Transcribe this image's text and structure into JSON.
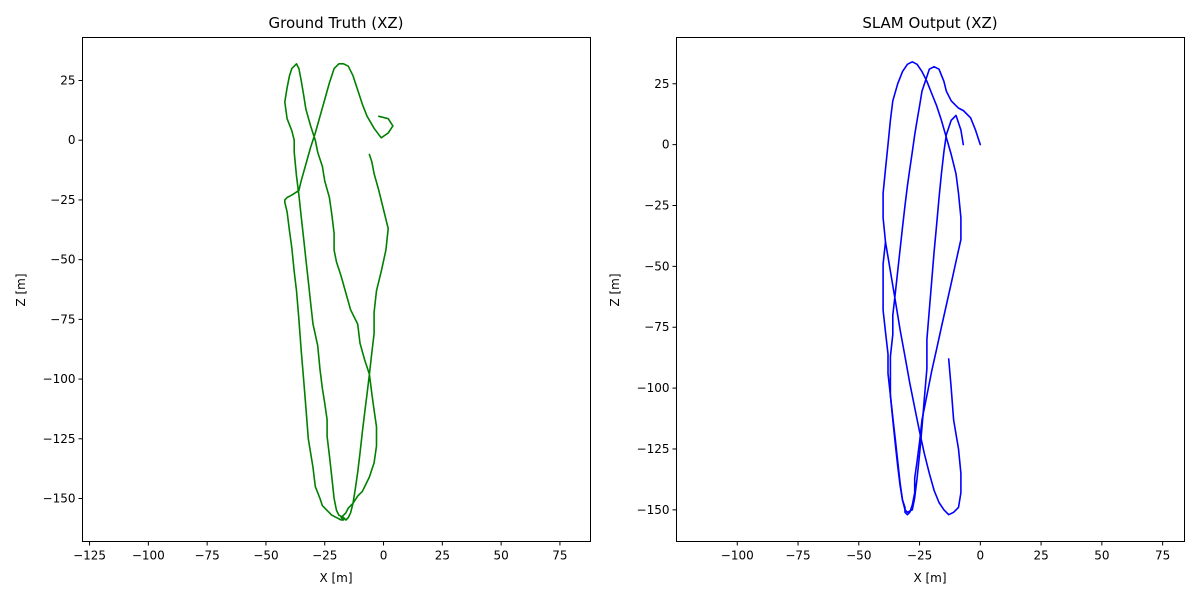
{
  "chart_data": [
    {
      "type": "line",
      "title": "Ground Truth (XZ)",
      "xlabel": "X [m]",
      "ylabel": "Z [m]",
      "xlim": [
        -128,
        88
      ],
      "ylim": [
        -168,
        43
      ],
      "xticks": [
        -125,
        -100,
        -75,
        -50,
        -25,
        0,
        25,
        50,
        75
      ],
      "yticks": [
        25,
        0,
        -25,
        -50,
        -75,
        -100,
        -125,
        -150
      ],
      "xtick_labels": [
        "−125",
        "−100",
        "−75",
        "−50",
        "−25",
        "0",
        "25",
        "50",
        "75"
      ],
      "ytick_labels": [
        "25",
        "0",
        "−25",
        "−50",
        "−75",
        "−100",
        "−125",
        "−150"
      ],
      "grid": false,
      "color": "#008000",
      "series": [
        {
          "x": [
            -2,
            2,
            4,
            2,
            -1,
            -4,
            -7,
            -9,
            -11,
            -13,
            -15,
            -17,
            -19,
            -21,
            -23,
            -25,
            -27,
            -29,
            -31,
            -33,
            -35,
            -36,
            -39,
            -41,
            -42,
            -42,
            -41,
            -40,
            -39,
            -38,
            -37,
            -36,
            -35,
            -34,
            -33,
            -32,
            -30,
            -29,
            -27,
            -26,
            -24,
            -22,
            -20,
            -18,
            -17,
            -18,
            -16,
            -15,
            -13,
            -11,
            -9,
            -8,
            -6,
            -4,
            -3,
            -3,
            -4,
            -5,
            -6,
            -8,
            -10,
            -11,
            -14,
            -16,
            -18,
            -20,
            -21,
            -21,
            -22,
            -23,
            -25,
            -26,
            -28,
            -29,
            -31,
            -33,
            -34,
            -35,
            -36,
            -37,
            -38,
            -39,
            -40,
            -41,
            -42,
            -41,
            -39,
            -38,
            -38,
            -37,
            -36,
            -35,
            -34,
            -33,
            -32,
            -31,
            -30,
            -28,
            -27,
            -26,
            -25,
            -24,
            -24,
            -23,
            -22,
            -21,
            -20,
            -19,
            -17,
            -16,
            -15,
            -14,
            -13,
            -12,
            -11,
            -10,
            -9,
            -8,
            -7,
            -6,
            -5,
            -4,
            -4,
            -3,
            -1,
            1,
            2,
            0,
            -2,
            -4,
            -5,
            -6
          ],
          "y": [
            10,
            9,
            6,
            3,
            1,
            5,
            10,
            15,
            21,
            27,
            31,
            32,
            32,
            30,
            24,
            17,
            10,
            3,
            -3,
            -10,
            -17,
            -21,
            -23,
            -24,
            -25,
            -26,
            -30,
            -38,
            -45,
            -55,
            -63,
            -75,
            -88,
            -100,
            -112,
            -125,
            -137,
            -145,
            -150,
            -153,
            -155,
            -157,
            -158,
            -159,
            -159,
            -158,
            -156,
            -154,
            -152,
            -149,
            -147,
            -145,
            -141,
            -135,
            -128,
            -120,
            -113,
            -106,
            -98,
            -92,
            -85,
            -77,
            -71,
            -64,
            -57,
            -51,
            -46,
            -39,
            -31,
            -24,
            -17,
            -11,
            -5,
            0,
            6,
            13,
            19,
            25,
            30,
            32,
            31,
            30,
            27,
            22,
            16,
            9,
            4,
            0,
            -5,
            -15,
            -23,
            -32,
            -41,
            -50,
            -59,
            -68,
            -77,
            -86,
            -96,
            -104,
            -110,
            -117,
            -124,
            -132,
            -141,
            -150,
            -155,
            -157,
            -158,
            -159,
            -158,
            -156,
            -152,
            -146,
            -139,
            -131,
            -122,
            -114,
            -106,
            -98,
            -89,
            -81,
            -72,
            -63,
            -55,
            -46,
            -37,
            -29,
            -21,
            -14,
            -9,
            -6
          ]
        }
      ]
    },
    {
      "type": "line",
      "title": "SLAM Output (XZ)",
      "xlabel": "X [m]",
      "ylabel": "Z [m]",
      "xlim": [
        -125,
        84
      ],
      "ylim": [
        -163,
        44
      ],
      "xticks": [
        -100,
        -75,
        -50,
        -25,
        0,
        25,
        50,
        75
      ],
      "yticks": [
        25,
        0,
        -25,
        -50,
        -75,
        -100,
        -125,
        -150
      ],
      "xtick_labels": [
        "−100",
        "−75",
        "−50",
        "−25",
        "0",
        "25",
        "50",
        "75"
      ],
      "ytick_labels": [
        "25",
        "0",
        "−25",
        "−50",
        "−75",
        "−100",
        "−125",
        "−150"
      ],
      "grid": false,
      "color": "#0000ff",
      "series": [
        {
          "x": [
            0,
            -2,
            -4,
            -7,
            -9,
            -10,
            -12,
            -14,
            -15,
            -17,
            -19,
            -21,
            -22,
            -24,
            -25,
            -26,
            -27,
            -28,
            -29,
            -30,
            -31,
            -32,
            -33,
            -34,
            -35,
            -36,
            -36,
            -37,
            -37,
            -37,
            -36,
            -35,
            -34,
            -33,
            -32,
            -31,
            -31,
            -30,
            -29,
            -28,
            -27,
            -27,
            -26,
            -25,
            -24,
            -22,
            -20,
            -18,
            -16,
            -14,
            -12,
            -10,
            -8,
            -8,
            -9,
            -10,
            -12,
            -14,
            -16,
            -18,
            -20,
            -22,
            -24,
            -26,
            -28,
            -30,
            -32,
            -34,
            -36,
            -37,
            -38,
            -39,
            -40,
            -40,
            -39,
            -37,
            -35,
            -33,
            -31,
            -29,
            -27,
            -25,
            -23,
            -21,
            -19,
            -17,
            -15,
            -13,
            -11,
            -9,
            -8,
            -8,
            -9,
            -11,
            -12,
            -13
          ],
          "y": [
            0,
            6,
            11,
            14,
            15,
            16,
            18,
            22,
            26,
            31,
            32,
            31,
            28,
            22,
            16,
            10,
            4,
            -3,
            -10,
            -17,
            -25,
            -34,
            -43,
            -52,
            -61,
            -70,
            -78,
            -87,
            -95,
            -103,
            -112,
            -121,
            -130,
            -139,
            -146,
            -149,
            -151,
            -152,
            -151,
            -148,
            -143,
            -137,
            -130,
            -122,
            -113,
            -103,
            -93,
            -84,
            -75,
            -66,
            -57,
            -48,
            -39,
            -30,
            -20,
            -12,
            -4,
            3,
            10,
            16,
            21,
            26,
            30,
            33,
            34,
            33,
            30,
            25,
            18,
            10,
            0,
            -10,
            -20,
            -30,
            -40,
            -52,
            -64,
            -76,
            -87,
            -98,
            -108,
            -118,
            -127,
            -135,
            -142,
            -147,
            -150,
            -152,
            -151,
            -149,
            -143,
            -135,
            -125,
            -113,
            -100,
            -88
          ]
        },
        {
          "x": [
            -7,
            -8,
            -10,
            -12,
            -14,
            -15,
            -16,
            -17,
            -18,
            -19,
            -20,
            -21,
            -22,
            -22,
            -23,
            -24,
            -25,
            -26,
            -27,
            -28,
            -30,
            -31,
            -32,
            -33,
            -34,
            -35,
            -36,
            -37,
            -38,
            -38,
            -39,
            -40,
            -40,
            -40,
            -39
          ],
          "y": [
            0,
            6,
            12,
            10,
            4,
            -3,
            -12,
            -22,
            -33,
            -44,
            -56,
            -68,
            -80,
            -92,
            -104,
            -116,
            -127,
            -137,
            -145,
            -150,
            -151,
            -150,
            -146,
            -140,
            -132,
            -123,
            -113,
            -103,
            -94,
            -86,
            -77,
            -68,
            -59,
            -49,
            -40
          ]
        }
      ]
    }
  ]
}
